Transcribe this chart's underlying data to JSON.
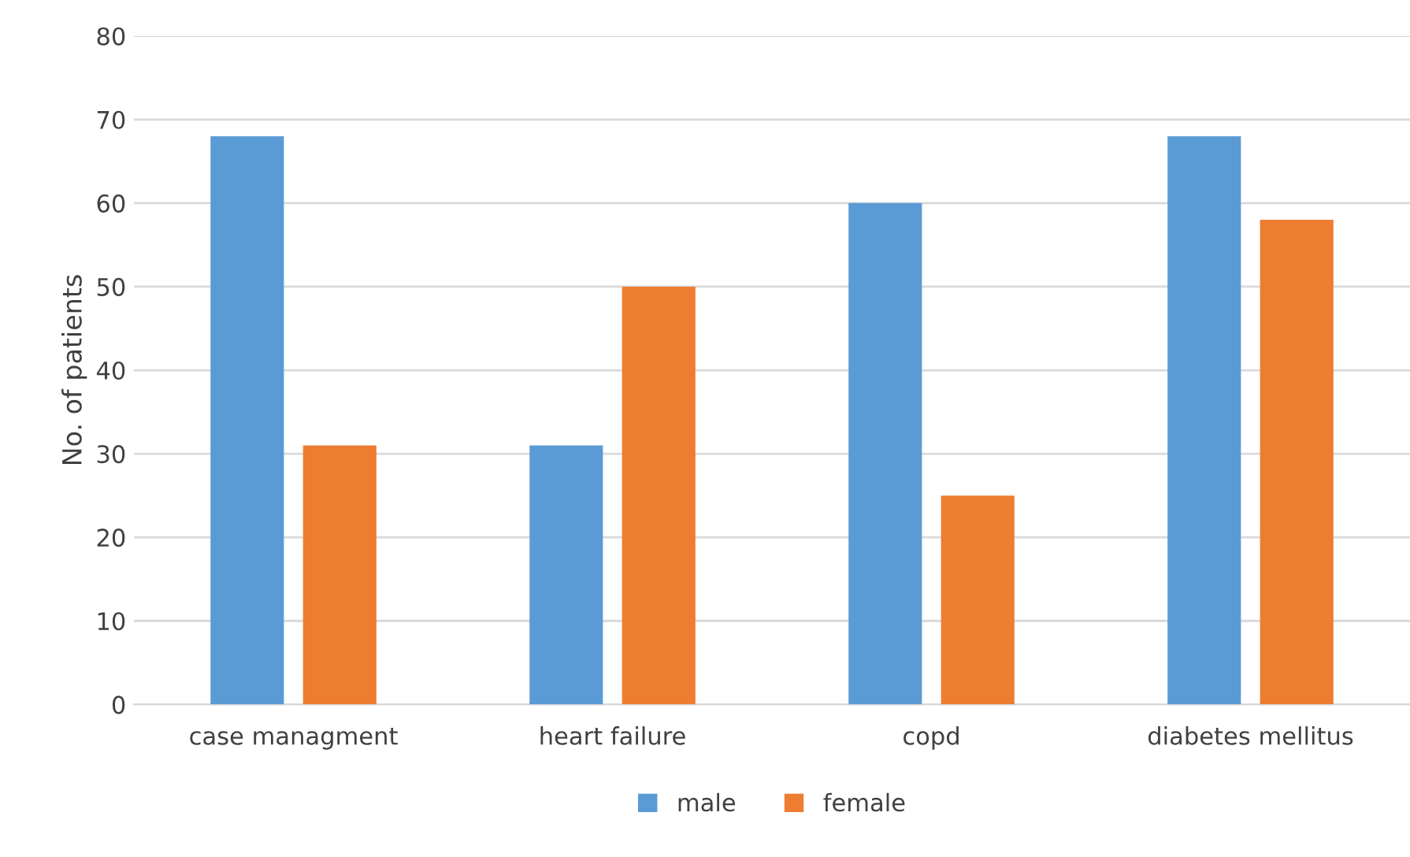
{
  "chart_data": {
    "type": "bar",
    "ylabel": "No. of patients",
    "categories": [
      "case managment",
      "heart failure",
      "copd",
      "diabetes mellitus"
    ],
    "series": [
      {
        "name": "male",
        "color": "#5b9bd5",
        "values": [
          68,
          31,
          60,
          68
        ]
      },
      {
        "name": "female",
        "color": "#ed7d31",
        "values": [
          31,
          50,
          25,
          58
        ]
      }
    ],
    "ylim": [
      0,
      80
    ],
    "yticks": [
      0,
      10,
      20,
      30,
      40,
      50,
      60,
      70,
      80
    ],
    "grid": "y",
    "legend": "bottom"
  }
}
